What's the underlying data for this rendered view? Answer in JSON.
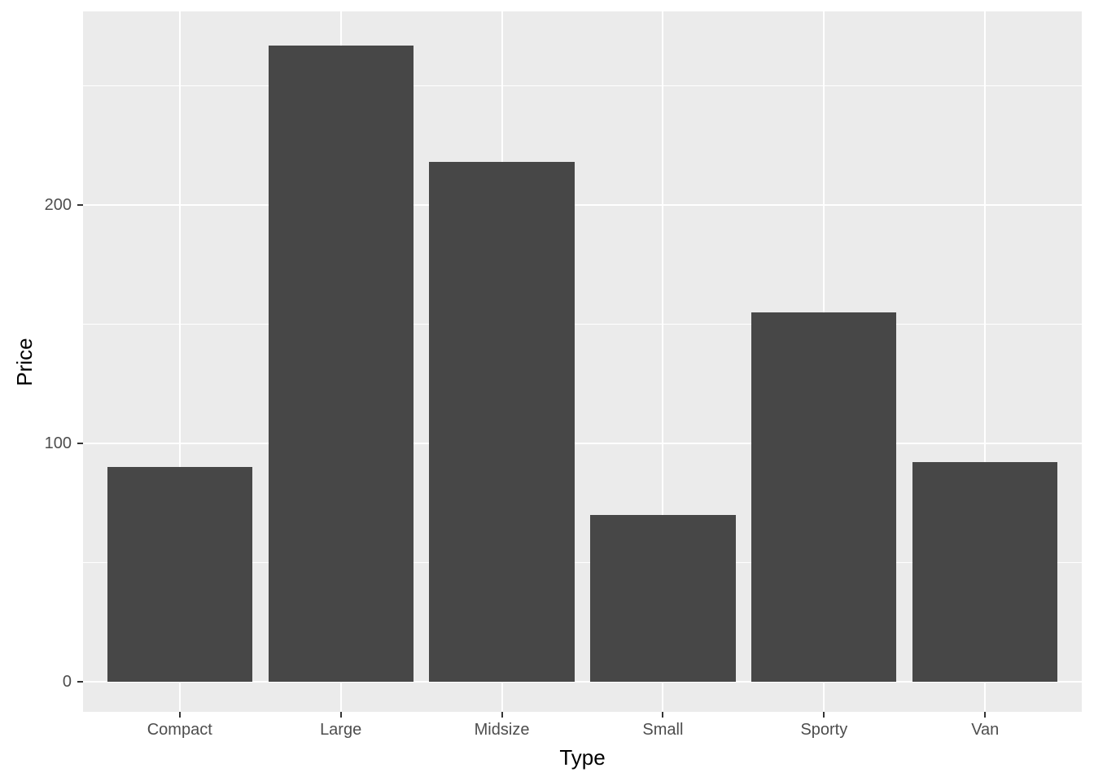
{
  "chart_data": {
    "type": "bar",
    "title": "",
    "categories": [
      "Compact",
      "Large",
      "Midsize",
      "Small",
      "Sporty",
      "Van"
    ],
    "values": [
      90,
      267,
      218,
      70,
      155,
      92
    ],
    "xlabel": "Type",
    "ylabel": "Price",
    "y_major_ticks": [
      0,
      100,
      200
    ],
    "y_tick_labels": [
      "0",
      "100",
      "200"
    ],
    "y_minor_ticks": [
      50,
      150,
      250
    ],
    "ylim": [
      -12.8,
      281.2
    ],
    "bar_rel_width": 0.9,
    "category_side_expand": 0.6,
    "grid": "on",
    "legend_position": "none",
    "style": "ggplot2-theme-grey",
    "colors": {
      "bar_fill": "#474747",
      "panel_background": "#EBEBEB",
      "gridline": "#FFFFFF",
      "tick_label": "#4D4D4D",
      "axis_title": "#000000",
      "tick_mark": "#333333",
      "figure_background": "#FFFFFF"
    }
  }
}
